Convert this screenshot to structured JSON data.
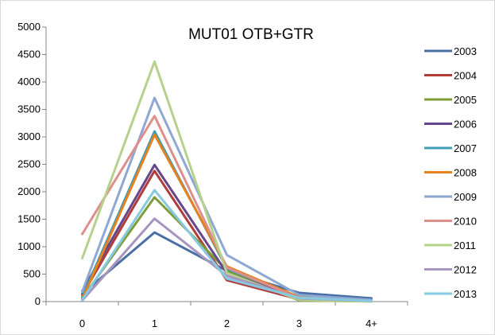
{
  "chart_data": {
    "type": "line",
    "title": "MUT01 OTB+GTR",
    "xlabel": "",
    "ylabel": "",
    "categories": [
      "0",
      "1",
      "2",
      "3",
      "4+"
    ],
    "ylim": [
      0,
      5000
    ],
    "yticks": [
      0,
      500,
      1000,
      1500,
      2000,
      2500,
      3000,
      3500,
      4000,
      4500,
      5000
    ],
    "grid": false,
    "legend_position": "right",
    "series": [
      {
        "name": "2003",
        "color": "#4a6fa5",
        "values": [
          140,
          1260,
          560,
          160,
          60
        ]
      },
      {
        "name": "2004",
        "color": "#b03c3a",
        "values": [
          120,
          2380,
          390,
          40,
          15
        ]
      },
      {
        "name": "2005",
        "color": "#7f9e3a",
        "values": [
          60,
          1900,
          570,
          20,
          5
        ]
      },
      {
        "name": "2006",
        "color": "#64478c",
        "values": [
          190,
          2490,
          520,
          60,
          20
        ]
      },
      {
        "name": "2007",
        "color": "#3f9cb5",
        "values": [
          80,
          3100,
          600,
          80,
          20
        ]
      },
      {
        "name": "2008",
        "color": "#e6821e",
        "values": [
          40,
          3040,
          640,
          80,
          20
        ]
      },
      {
        "name": "2009",
        "color": "#8ea7d3",
        "values": [
          180,
          3710,
          850,
          120,
          30
        ]
      },
      {
        "name": "2010",
        "color": "#de8f8c",
        "values": [
          1230,
          3380,
          620,
          60,
          10
        ]
      },
      {
        "name": "2011",
        "color": "#b6d18c",
        "values": [
          790,
          4370,
          520,
          30,
          5
        ]
      },
      {
        "name": "2012",
        "color": "#a795c0",
        "values": [
          20,
          1510,
          470,
          60,
          10
        ]
      },
      {
        "name": "2013",
        "color": "#86c9e0",
        "values": [
          30,
          2030,
          420,
          70,
          10
        ]
      }
    ]
  }
}
